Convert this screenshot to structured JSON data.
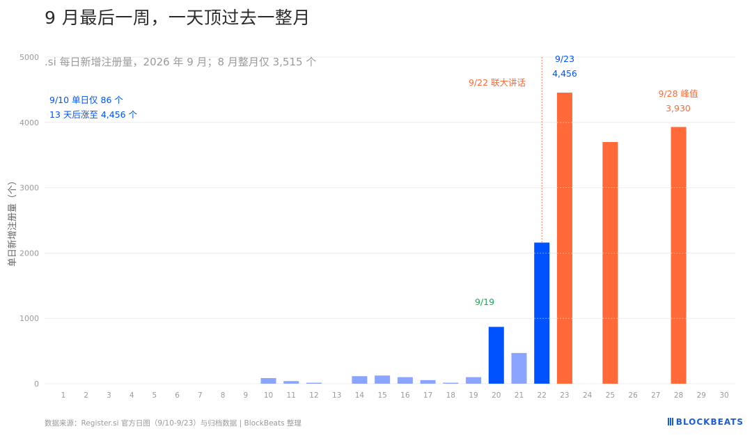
{
  "title": "9 月最后一周，一天顶过去一整月",
  "footer": {
    "source": "数据来源：Register.si 官方日图（9/10-9/23）与归档数据 | BlockBeats 整理",
    "brand": "BLOCKBEATS"
  },
  "colors": {
    "light_blue": "#8aa4ff",
    "blue": "#0052ff",
    "orange": "#ff6a38",
    "green": "#1aaa55",
    "grid": "#ececec",
    "axis_text": "#9a9a9a"
  },
  "chart_data": {
    "type": "bar",
    "subtitle": ".si 每日新增注册量，2026 年 9 月；8 月整月仅 3,515 个",
    "ylabel": "单日新增注册量（个）",
    "xlabel": "",
    "ylim": [
      0,
      5000
    ],
    "yticks": [
      0,
      1000,
      2000,
      3000,
      4000,
      5000
    ],
    "grid": true,
    "categories": [
      "1",
      "2",
      "3",
      "4",
      "5",
      "6",
      "7",
      "8",
      "9",
      "10",
      "11",
      "12",
      "13",
      "14",
      "15",
      "16",
      "17",
      "18",
      "19",
      "20",
      "21",
      "22",
      "23",
      "24",
      "25",
      "26",
      "27",
      "28",
      "29",
      "30"
    ],
    "values": [
      0,
      0,
      0,
      0,
      0,
      0,
      0,
      0,
      0,
      86,
      40,
      15,
      0,
      115,
      125,
      100,
      55,
      15,
      100,
      870,
      470,
      2160,
      4456,
      0,
      3700,
      0,
      0,
      3930,
      0,
      0
    ],
    "bar_colors": [
      "light_blue",
      "light_blue",
      "light_blue",
      "light_blue",
      "light_blue",
      "light_blue",
      "light_blue",
      "light_blue",
      "light_blue",
      "light_blue",
      "light_blue",
      "light_blue",
      "light_blue",
      "light_blue",
      "light_blue",
      "light_blue",
      "light_blue",
      "light_blue",
      "light_blue",
      "blue",
      "light_blue",
      "blue",
      "orange",
      "orange",
      "orange",
      "orange",
      "orange",
      "orange",
      "orange",
      "orange"
    ],
    "annotations": [
      {
        "id": "left-note",
        "lines": [
          "9/10 单日仅 86 个",
          "13 天后涨至 4,456 个"
        ],
        "color": "blue"
      },
      {
        "id": "note-919",
        "lines": [
          "9/19"
        ],
        "color": "green"
      },
      {
        "id": "note-922",
        "lines": [
          "9/22 联大讲话"
        ],
        "color": "orange"
      },
      {
        "id": "note-923",
        "lines": [
          "9/23",
          "4,456"
        ],
        "color": "blue"
      },
      {
        "id": "note-928",
        "lines": [
          "9/28 峰值",
          "3,930"
        ],
        "color": "orange"
      }
    ],
    "event_line": {
      "category": "22",
      "color": "orange"
    }
  }
}
